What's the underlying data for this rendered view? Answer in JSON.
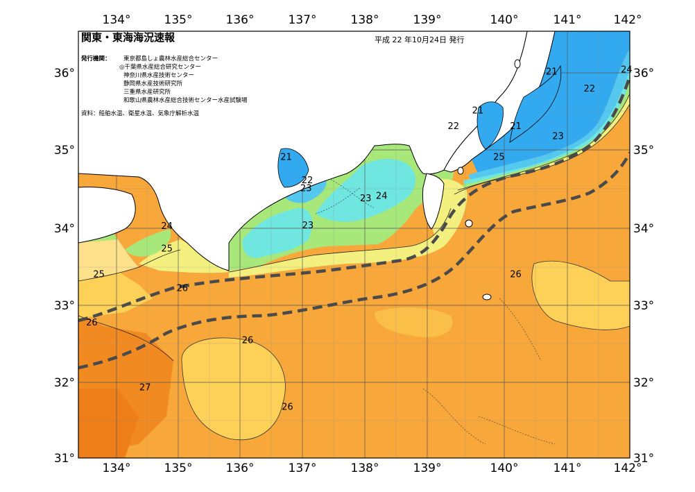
{
  "header": {
    "title": "関東・東海海況速報",
    "issue_date": "平成 22 年10月24日 発行"
  },
  "issuers": {
    "label": "発行機関：",
    "items": [
      "東京都島しょ農林水産総合センター",
      "◎千葉県水産総合研究センター",
      "神奈川県水産技術センター",
      "静岡県水産技術研究所",
      "三重県水産研究所",
      "和歌山県農林水産総合技術センター水産試験場"
    ]
  },
  "sources": "資料：船舶水温、衛星水温、気象庁解析水温",
  "axes": {
    "lon_labels": [
      "134°",
      "135°",
      "136°",
      "137°",
      "138°",
      "139°",
      "140°",
      "141°",
      "142°"
    ],
    "lat_labels": [
      "36°",
      "35°",
      "34°",
      "33°",
      "32°",
      "31°"
    ]
  },
  "isotherm_labels": [
    {
      "text": "21",
      "lon": 140.78,
      "lat": 35.94
    },
    {
      "text": "21",
      "lon": 139.63,
      "lat": 35.44
    },
    {
      "text": "21",
      "lon": 140.22,
      "lat": 35.24
    },
    {
      "text": "21",
      "lon": 136.64,
      "lat": 34.84
    },
    {
      "text": "22",
      "lon": 141.37,
      "lat": 35.72
    },
    {
      "text": "22",
      "lon": 139.25,
      "lat": 35.24
    },
    {
      "text": "22",
      "lon": 136.97,
      "lat": 34.54
    },
    {
      "text": "23",
      "lon": 140.88,
      "lat": 35.11
    },
    {
      "text": "23",
      "lon": 136.95,
      "lat": 34.44
    },
    {
      "text": "23",
      "lon": 137.88,
      "lat": 34.31
    },
    {
      "text": "23",
      "lon": 136.98,
      "lat": 33.96
    },
    {
      "text": "24",
      "lon": 141.95,
      "lat": 35.97
    },
    {
      "text": "24",
      "lon": 138.13,
      "lat": 34.34
    },
    {
      "text": "24",
      "lon": 134.78,
      "lat": 33.95
    },
    {
      "text": "25",
      "lon": 139.96,
      "lat": 34.84
    },
    {
      "text": "25",
      "lon": 134.78,
      "lat": 33.66
    },
    {
      "text": "25",
      "lon": 133.72,
      "lat": 33.33
    },
    {
      "text": "26",
      "lon": 140.22,
      "lat": 33.33
    },
    {
      "text": "26",
      "lon": 135.02,
      "lat": 33.15
    },
    {
      "text": "26",
      "lon": 133.61,
      "lat": 32.71
    },
    {
      "text": "26",
      "lon": 136.04,
      "lat": 32.48
    },
    {
      "text": "26",
      "lon": 136.66,
      "lat": 31.62
    },
    {
      "text": "27",
      "lon": 134.44,
      "lat": 31.87
    }
  ],
  "colors": {
    "t21": "#33aaf0",
    "t22": "#55c8f0",
    "t23": "#6fe6e0",
    "t24": "#8ee8a8",
    "t24b": "#a8e87a",
    "t25": "#f4f080",
    "t25b": "#fde08a",
    "t26": "#fcce5a",
    "t26b": "#f8a83a",
    "t27": "#f59a30",
    "t27b": "#f28a22",
    "land": "#ffffff",
    "grid": "#555555",
    "current": "#555555"
  }
}
